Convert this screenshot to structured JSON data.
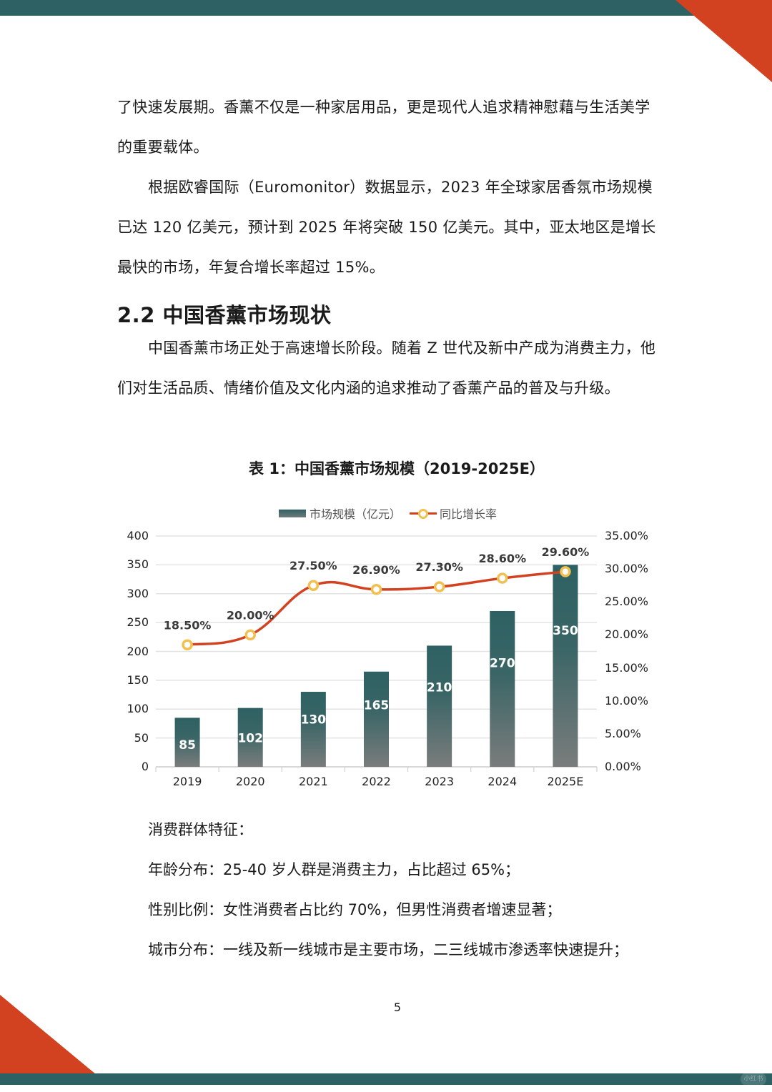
{
  "page": {
    "number": "5",
    "colors": {
      "teal": "#2e6163",
      "orange": "#d34220",
      "marker": "#f2c050"
    },
    "watermark": "小红书"
  },
  "body": {
    "para1_line1": "了快速发展期。香薰不仅是一种家居用品，更是现代人追求精神慰藉与生活美学",
    "para1_line2": "的重要载体。",
    "para2": "根据欧睿国际（Euromonitor）数据显示，2023 年全球家居香氛市场规模已达 120 亿美元，预计到 2025 年将突破 150 亿美元。其中，亚太地区是增长最快的市场，年复合增长率超过 15%。",
    "section_heading": "2.2  中国香薰市场现状",
    "para3": "中国香薰市场正处于高速增长阶段。随着 Z 世代及新中产成为消费主力，他们对生活品质、情绪价值及文化内涵的追求推动了香薰产品的普及与升级。"
  },
  "chart_data": {
    "type": "bar",
    "title": "表 1：中国香薰市场规模（2019-2025E）",
    "categories": [
      "2019",
      "2020",
      "2021",
      "2022",
      "2023",
      "2024",
      "2025E"
    ],
    "series": [
      {
        "name": "市场规模（亿元）",
        "type": "bar",
        "axis": "left",
        "values": [
          85,
          102,
          130,
          165,
          210,
          270,
          350
        ],
        "labels": [
          "85",
          "102",
          "130",
          "165",
          "210",
          "270",
          "350"
        ]
      },
      {
        "name": "同比增长率",
        "type": "line",
        "axis": "right",
        "values": [
          18.5,
          20.0,
          27.5,
          26.9,
          27.3,
          28.6,
          29.6
        ],
        "labels": [
          "18.50%",
          "20.00%",
          "27.50%",
          "26.90%",
          "27.30%",
          "28.60%",
          "29.60%"
        ]
      }
    ],
    "y_left": {
      "ticks": [
        "0",
        "50",
        "100",
        "150",
        "200",
        "250",
        "300",
        "350",
        "400"
      ],
      "ylim": [
        0,
        400
      ]
    },
    "y_right": {
      "ticks": [
        "0.00%",
        "5.00%",
        "10.00%",
        "15.00%",
        "20.00%",
        "25.00%",
        "30.00%",
        "35.00%"
      ],
      "ylim": [
        0,
        35
      ]
    },
    "grid": true,
    "legend_position": "top"
  },
  "consumers": {
    "heading": "消费群体特征：",
    "items": [
      "年龄分布：25-40 岁人群是消费主力，占比超过 65%；",
      "性别比例：女性消费者占比约 70%，但男性消费者增速显著；",
      "城市分布：一线及新一线城市是主要市场，二三线城市渗透率快速提升；"
    ]
  }
}
